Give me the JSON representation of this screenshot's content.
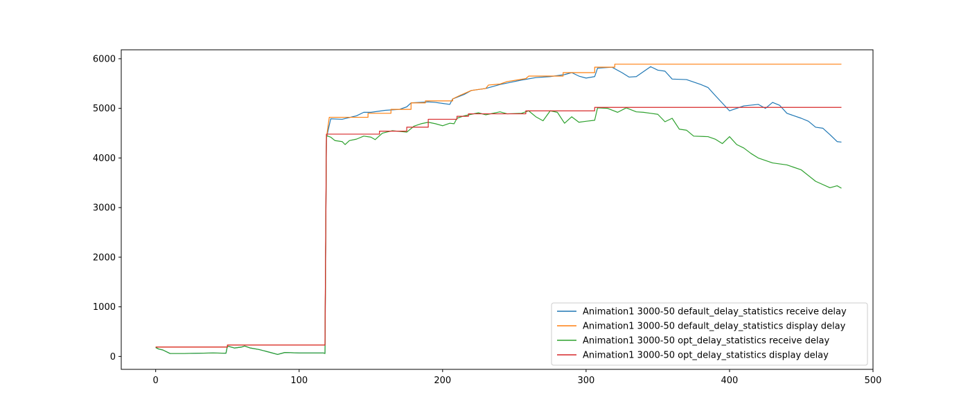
{
  "chart_data": {
    "type": "line",
    "title": "",
    "xlabel": "",
    "ylabel": "",
    "xlim": [
      -24,
      500
    ],
    "ylim": [
      -260,
      6180
    ],
    "x_ticks": [
      0,
      100,
      200,
      300,
      400,
      500
    ],
    "y_ticks": [
      0,
      1000,
      2000,
      3000,
      4000,
      5000,
      6000
    ],
    "grid": false,
    "legend_position": "lower-right",
    "series": [
      {
        "name": "Animation1 3000-50 default_delay_statistics receive delay",
        "color": "#1f77b4",
        "points": [
          [
            0,
            180
          ],
          [
            2,
            150
          ],
          [
            5,
            130
          ],
          [
            10,
            60
          ],
          [
            20,
            60
          ],
          [
            30,
            65
          ],
          [
            40,
            70
          ],
          [
            49,
            65
          ],
          [
            50,
            210
          ],
          [
            55,
            170
          ],
          [
            60,
            190
          ],
          [
            62,
            210
          ],
          [
            66,
            170
          ],
          [
            72,
            140
          ],
          [
            80,
            80
          ],
          [
            85,
            40
          ],
          [
            90,
            80
          ],
          [
            100,
            70
          ],
          [
            110,
            70
          ],
          [
            117,
            70
          ],
          [
            118,
            60
          ],
          [
            119,
            4400
          ],
          [
            122,
            4790
          ],
          [
            130,
            4780
          ],
          [
            140,
            4850
          ],
          [
            145,
            4920
          ],
          [
            150,
            4920
          ],
          [
            160,
            4960
          ],
          [
            170,
            4980
          ],
          [
            175,
            5030
          ],
          [
            178,
            5110
          ],
          [
            190,
            5130
          ],
          [
            195,
            5120
          ],
          [
            200,
            5100
          ],
          [
            205,
            5080
          ],
          [
            207,
            5190
          ],
          [
            215,
            5280
          ],
          [
            220,
            5360
          ],
          [
            230,
            5400
          ],
          [
            240,
            5480
          ],
          [
            245,
            5510
          ],
          [
            255,
            5570
          ],
          [
            265,
            5620
          ],
          [
            275,
            5640
          ],
          [
            285,
            5680
          ],
          [
            290,
            5720
          ],
          [
            295,
            5650
          ],
          [
            300,
            5610
          ],
          [
            306,
            5640
          ],
          [
            308,
            5810
          ],
          [
            318,
            5830
          ],
          [
            325,
            5720
          ],
          [
            330,
            5630
          ],
          [
            335,
            5640
          ],
          [
            345,
            5840
          ],
          [
            350,
            5770
          ],
          [
            355,
            5750
          ],
          [
            360,
            5590
          ],
          [
            370,
            5580
          ],
          [
            380,
            5480
          ],
          [
            385,
            5420
          ],
          [
            390,
            5260
          ],
          [
            400,
            4950
          ],
          [
            410,
            5050
          ],
          [
            420,
            5080
          ],
          [
            425,
            5000
          ],
          [
            430,
            5120
          ],
          [
            435,
            5060
          ],
          [
            440,
            4900
          ],
          [
            450,
            4800
          ],
          [
            455,
            4740
          ],
          [
            460,
            4620
          ],
          [
            465,
            4600
          ],
          [
            470,
            4470
          ],
          [
            475,
            4330
          ],
          [
            478,
            4320
          ]
        ]
      },
      {
        "name": "Animation1 3000-50 default_delay_statistics display delay",
        "color": "#ff7f0e",
        "points": [
          [
            0,
            190
          ],
          [
            50,
            190
          ],
          [
            50,
            230
          ],
          [
            118,
            230
          ],
          [
            119,
            4400
          ],
          [
            121,
            4820
          ],
          [
            148,
            4820
          ],
          [
            148,
            4900
          ],
          [
            164,
            4900
          ],
          [
            164,
            4980
          ],
          [
            178,
            4980
          ],
          [
            178,
            5110
          ],
          [
            188,
            5110
          ],
          [
            188,
            5150
          ],
          [
            207,
            5150
          ],
          [
            207,
            5190
          ],
          [
            212,
            5260
          ],
          [
            220,
            5360
          ],
          [
            230,
            5400
          ],
          [
            232,
            5470
          ],
          [
            240,
            5490
          ],
          [
            245,
            5540
          ],
          [
            258,
            5600
          ],
          [
            260,
            5650
          ],
          [
            284,
            5650
          ],
          [
            284,
            5720
          ],
          [
            306,
            5720
          ],
          [
            306,
            5830
          ],
          [
            320,
            5830
          ],
          [
            320,
            5890
          ],
          [
            478,
            5890
          ]
        ]
      },
      {
        "name": "Animation1 3000-50 opt_delay_statistics receive delay",
        "color": "#2ca02c",
        "points": [
          [
            0,
            180
          ],
          [
            2,
            150
          ],
          [
            5,
            130
          ],
          [
            10,
            60
          ],
          [
            20,
            60
          ],
          [
            30,
            65
          ],
          [
            40,
            70
          ],
          [
            49,
            65
          ],
          [
            50,
            210
          ],
          [
            55,
            170
          ],
          [
            60,
            190
          ],
          [
            62,
            210
          ],
          [
            66,
            170
          ],
          [
            72,
            140
          ],
          [
            80,
            80
          ],
          [
            85,
            40
          ],
          [
            90,
            80
          ],
          [
            100,
            70
          ],
          [
            110,
            70
          ],
          [
            117,
            70
          ],
          [
            118,
            60
          ],
          [
            119,
            4450
          ],
          [
            122,
            4420
          ],
          [
            125,
            4350
          ],
          [
            130,
            4330
          ],
          [
            132,
            4270
          ],
          [
            135,
            4350
          ],
          [
            140,
            4380
          ],
          [
            145,
            4440
          ],
          [
            150,
            4420
          ],
          [
            153,
            4370
          ],
          [
            158,
            4500
          ],
          [
            165,
            4550
          ],
          [
            175,
            4520
          ],
          [
            180,
            4640
          ],
          [
            185,
            4690
          ],
          [
            190,
            4720
          ],
          [
            195,
            4690
          ],
          [
            200,
            4650
          ],
          [
            205,
            4700
          ],
          [
            208,
            4690
          ],
          [
            210,
            4800
          ],
          [
            215,
            4850
          ],
          [
            220,
            4880
          ],
          [
            225,
            4910
          ],
          [
            230,
            4870
          ],
          [
            240,
            4930
          ],
          [
            245,
            4890
          ],
          [
            255,
            4900
          ],
          [
            260,
            4950
          ],
          [
            265,
            4830
          ],
          [
            270,
            4750
          ],
          [
            275,
            4950
          ],
          [
            280,
            4920
          ],
          [
            285,
            4700
          ],
          [
            290,
            4830
          ],
          [
            295,
            4720
          ],
          [
            300,
            4740
          ],
          [
            306,
            4760
          ],
          [
            308,
            5010
          ],
          [
            315,
            5000
          ],
          [
            322,
            4920
          ],
          [
            328,
            5010
          ],
          [
            335,
            4930
          ],
          [
            340,
            4920
          ],
          [
            345,
            4900
          ],
          [
            350,
            4880
          ],
          [
            355,
            4730
          ],
          [
            360,
            4800
          ],
          [
            365,
            4580
          ],
          [
            370,
            4560
          ],
          [
            375,
            4440
          ],
          [
            385,
            4430
          ],
          [
            390,
            4380
          ],
          [
            395,
            4290
          ],
          [
            400,
            4430
          ],
          [
            405,
            4270
          ],
          [
            410,
            4200
          ],
          [
            415,
            4090
          ],
          [
            420,
            4000
          ],
          [
            430,
            3900
          ],
          [
            440,
            3860
          ],
          [
            450,
            3760
          ],
          [
            460,
            3530
          ],
          [
            470,
            3400
          ],
          [
            475,
            3440
          ],
          [
            478,
            3390
          ]
        ]
      },
      {
        "name": "Animation1 3000-50 opt_delay_statistics display delay",
        "color": "#d62728",
        "points": [
          [
            0,
            190
          ],
          [
            50,
            190
          ],
          [
            50,
            230
          ],
          [
            118,
            230
          ],
          [
            119,
            4480
          ],
          [
            156,
            4480
          ],
          [
            156,
            4540
          ],
          [
            175,
            4540
          ],
          [
            175,
            4620
          ],
          [
            190,
            4620
          ],
          [
            190,
            4780
          ],
          [
            210,
            4780
          ],
          [
            210,
            4840
          ],
          [
            218,
            4840
          ],
          [
            218,
            4890
          ],
          [
            258,
            4890
          ],
          [
            258,
            4950
          ],
          [
            306,
            4950
          ],
          [
            306,
            5020
          ],
          [
            478,
            5020
          ]
        ]
      }
    ]
  }
}
